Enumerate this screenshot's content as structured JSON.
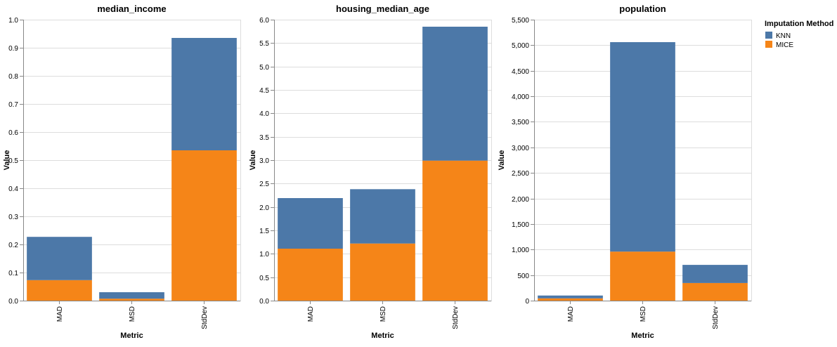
{
  "legend": {
    "title": "Imputation Method",
    "items": [
      {
        "label": "KNN",
        "color": "#4c78a8"
      },
      {
        "label": "MICE",
        "color": "#f58518"
      }
    ]
  },
  "chart_data": [
    {
      "type": "bar",
      "stacked": true,
      "title": "median_income",
      "xlabel": "Metric",
      "ylabel": "Value",
      "ylim": [
        0,
        1.0
      ],
      "yticks": [
        "0.0",
        "0.1",
        "0.2",
        "0.3",
        "0.4",
        "0.5",
        "0.6",
        "0.7",
        "0.8",
        "0.9",
        "1.0"
      ],
      "categories": [
        "MAD",
        "MSD",
        "StdDev"
      ],
      "series": [
        {
          "name": "MICE",
          "values": [
            0.073,
            0.007,
            0.535
          ]
        },
        {
          "name": "KNN",
          "values": [
            0.154,
            0.023,
            0.4
          ]
        }
      ],
      "grid": true
    },
    {
      "type": "bar",
      "stacked": true,
      "title": "housing_median_age",
      "xlabel": "Metric",
      "ylabel": "Value",
      "ylim": [
        0,
        6.0
      ],
      "yticks": [
        "0.0",
        "0.5",
        "1.0",
        "1.5",
        "2.0",
        "2.5",
        "3.0",
        "3.5",
        "4.0",
        "4.5",
        "5.0",
        "5.5",
        "6.0"
      ],
      "categories": [
        "MAD",
        "MSD",
        "StdDev"
      ],
      "series": [
        {
          "name": "MICE",
          "values": [
            1.11,
            1.22,
            2.99
          ]
        },
        {
          "name": "KNN",
          "values": [
            1.08,
            1.16,
            2.86
          ]
        }
      ],
      "grid": true
    },
    {
      "type": "bar",
      "stacked": true,
      "title": "population",
      "xlabel": "Metric",
      "ylabel": "Value",
      "ylim": [
        0,
        5500
      ],
      "yticks": [
        "0",
        "500",
        "1,000",
        "1,500",
        "2,000",
        "2,500",
        "3,000",
        "3,500",
        "4,000",
        "4,500",
        "5,000",
        "5,500"
      ],
      "categories": [
        "MAD",
        "MSD",
        "StdDev"
      ],
      "series": [
        {
          "name": "MICE",
          "values": [
            45,
            960,
            345
          ]
        },
        {
          "name": "KNN",
          "values": [
            55,
            4100,
            355
          ]
        }
      ],
      "grid": true
    }
  ]
}
